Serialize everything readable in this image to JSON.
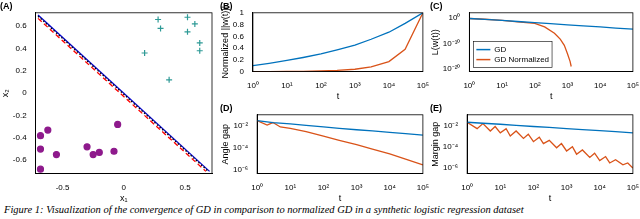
{
  "caption": "Figure 1: Visualization of the convergence of GD in comparison to normalized GD in a synthetic logistic regression dataset",
  "chart_data": [
    {
      "type": "scatter",
      "title": "(A)",
      "xlabel": "x₁",
      "ylabel": "x₂",
      "xlim": [
        -0.72,
        0.72
      ],
      "ylim": [
        -0.72,
        0.72
      ],
      "xticks": [
        -0.5,
        0,
        0.5
      ],
      "yticks": [
        -0.6,
        -0.4,
        -0.2,
        0,
        0.2,
        0.4,
        0.6
      ],
      "grid": false,
      "series": [
        {
          "type": "scatter",
          "marker": "plus",
          "color": "#2e9a96",
          "x": [
            0.28,
            0.52,
            0.58,
            0.3,
            0.52,
            0.62,
            0.62,
            0.17,
            0.37
          ],
          "values": [
            0.66,
            0.68,
            0.62,
            0.58,
            0.55,
            0.45,
            0.38,
            0.36,
            0.12
          ]
        },
        {
          "type": "scatter",
          "marker": "circle",
          "color": "#8e1a8c",
          "x": [
            -0.05,
            -0.62,
            -0.68,
            -0.68,
            -0.55,
            -0.3,
            -0.25,
            -0.2,
            -0.08,
            -0.68
          ],
          "values": [
            -0.28,
            -0.33,
            -0.38,
            -0.5,
            -0.55,
            -0.48,
            -0.55,
            -0.53,
            -0.52,
            -0.68
          ]
        },
        {
          "type": "line",
          "line_style": "dashed",
          "color": "#ff0000",
          "x": [
            -0.7,
            0.67
          ],
          "values": [
            0.67,
            -0.7
          ]
        },
        {
          "type": "line",
          "line_style": "dotted",
          "color": "#000000",
          "x": [
            -0.7,
            0.69
          ],
          "values": [
            0.69,
            -0.7
          ]
        },
        {
          "type": "line",
          "line_style": "solid",
          "color": "#0000cc",
          "x": [
            -0.7,
            0.7
          ],
          "values": [
            0.7,
            -0.7
          ]
        }
      ]
    },
    {
      "type": "line",
      "title": "(B)",
      "xlabel": "t",
      "ylabel": "Normalized ||w(t)||",
      "log": "x",
      "grid": false,
      "xlim": [
        1,
        100000
      ],
      "ylim": [
        0,
        1
      ],
      "xticks": [
        {
          "value": 1,
          "label": "10⁰"
        },
        {
          "value": 10,
          "label": "10¹"
        },
        {
          "value": 100,
          "label": "10²"
        },
        {
          "value": 1000,
          "label": "10³"
        },
        {
          "value": 10000,
          "label": "10⁴"
        },
        {
          "value": 100000,
          "label": "10⁵"
        }
      ],
      "yticks": [
        0,
        0.2,
        0.4,
        0.6,
        0.8,
        1
      ],
      "series": [
        {
          "color": "#0072bd",
          "x": [
            1,
            3,
            10,
            30,
            100,
            300,
            1000,
            3000,
            10000,
            30000,
            100000
          ],
          "values": [
            0.1,
            0.14,
            0.19,
            0.24,
            0.3,
            0.37,
            0.45,
            0.55,
            0.67,
            0.82,
            1.0
          ]
        },
        {
          "color": "#d95319",
          "x": [
            1,
            3,
            10,
            30,
            100,
            300,
            1000,
            3000,
            10000,
            30000,
            100000
          ],
          "values": [
            0,
            0,
            0.002,
            0.005,
            0.01,
            0.02,
            0.04,
            0.08,
            0.17,
            0.38,
            1.0
          ]
        }
      ]
    },
    {
      "type": "line",
      "title": "(C)",
      "xlabel": "t",
      "ylabel": "L(w(t))",
      "log": true,
      "grid": false,
      "legend": "lower left",
      "xlim": [
        1,
        100000
      ],
      "ylim": [
        1e-21,
        100
      ],
      "xticks": [
        {
          "value": 1,
          "label": "10⁰"
        },
        {
          "value": 10,
          "label": "10¹"
        },
        {
          "value": 100,
          "label": "10²"
        },
        {
          "value": 1000,
          "label": "10³"
        },
        {
          "value": 10000,
          "label": "10⁴"
        },
        {
          "value": 100000,
          "label": "10⁵"
        }
      ],
      "yticks": [
        {
          "value": 1e-20,
          "label": "10⁻²⁰"
        },
        {
          "value": 1e-10,
          "label": "10⁻¹⁰"
        },
        {
          "value": 1,
          "label": "10⁰"
        }
      ],
      "series": [
        {
          "name": "GD",
          "color": "#0072bd",
          "x": [
            1,
            3,
            10,
            30,
            100,
            300,
            1000,
            3000,
            10000,
            30000,
            100000
          ],
          "values": [
            0.6,
            0.25,
            0.1,
            0.04,
            0.015,
            0.006,
            0.002,
            0.0008,
            0.0003,
            0.0001,
            4e-05
          ]
        },
        {
          "name": "GD Normalized",
          "color": "#d95319",
          "x": [
            1,
            3,
            10,
            30,
            100,
            200,
            400,
            600,
            800,
            1000,
            1200,
            1300
          ],
          "values": [
            0.6,
            0.3,
            0.1,
            0.03,
            0.008,
            0.0003,
            1e-06,
            5e-09,
            2e-11,
            1e-14,
            1e-17,
            1e-19
          ]
        }
      ]
    },
    {
      "type": "line",
      "title": "(D)",
      "xlabel": "t",
      "ylabel": "Angle gap",
      "log": true,
      "grid": false,
      "xlim": [
        1,
        100000
      ],
      "ylim": [
        5e-07,
        0.1
      ],
      "xticks": [
        {
          "value": 1,
          "label": "10⁰"
        },
        {
          "value": 10,
          "label": "10¹"
        },
        {
          "value": 100,
          "label": "10²"
        },
        {
          "value": 1000,
          "label": "10³"
        },
        {
          "value": 10000,
          "label": "10⁴"
        },
        {
          "value": 100000,
          "label": "10⁵"
        }
      ],
      "yticks": [
        {
          "value": 1e-06,
          "label": "10⁻⁶"
        },
        {
          "value": 0.0001,
          "label": "10⁻⁴"
        },
        {
          "value": 0.01,
          "label": "10⁻²"
        }
      ],
      "series": [
        {
          "color": "#0072bd",
          "x": [
            1,
            3,
            10,
            30,
            100,
            300,
            1000,
            3000,
            10000,
            30000,
            100000
          ],
          "values": [
            0.03,
            0.02,
            0.015,
            0.011,
            0.008,
            0.006,
            0.0045,
            0.0035,
            0.0026,
            0.002,
            0.0015
          ]
        },
        {
          "color": "#d95319",
          "x": [
            1,
            2,
            3,
            5,
            10,
            30,
            100,
            300,
            1000,
            3000,
            10000,
            30000,
            100000
          ],
          "values": [
            0.03,
            0.012,
            0.02,
            0.008,
            0.006,
            0.003,
            0.0012,
            0.0005,
            0.0002,
            8e-05,
            3e-05,
            1e-05,
            3e-06
          ]
        }
      ]
    },
    {
      "type": "line",
      "title": "(E)",
      "xlabel": "t",
      "ylabel": "Margin gap",
      "log": true,
      "grid": false,
      "xlim": [
        1,
        100000
      ],
      "ylim": [
        3e-07,
        0.1
      ],
      "xticks": [
        {
          "value": 1,
          "label": "10⁰"
        },
        {
          "value": 10,
          "label": "10¹"
        },
        {
          "value": 100,
          "label": "10²"
        },
        {
          "value": 1000,
          "label": "10³"
        },
        {
          "value": 10000,
          "label": "10⁴"
        },
        {
          "value": 100000,
          "label": "10⁵"
        }
      ],
      "yticks": [
        {
          "value": 1e-06,
          "label": "10⁻⁶"
        },
        {
          "value": 0.0001,
          "label": "10⁻⁴"
        },
        {
          "value": 0.01,
          "label": "10⁻²"
        }
      ],
      "series": [
        {
          "color": "#0072bd",
          "x": [
            1,
            3,
            10,
            30,
            100,
            300,
            1000,
            3000,
            10000,
            30000,
            100000
          ],
          "values": [
            0.02,
            0.016,
            0.013,
            0.01,
            0.008,
            0.0065,
            0.005,
            0.004,
            0.0032,
            0.0026,
            0.002
          ]
        },
        {
          "color": "#d95319",
          "x": [
            1,
            2,
            3,
            5,
            7,
            10,
            15,
            20,
            30,
            50,
            70,
            100,
            150,
            200,
            300,
            500,
            700,
            1000,
            1500,
            2000,
            3000,
            5000,
            7000,
            10000,
            15000,
            20000,
            30000,
            50000,
            70000,
            100000
          ],
          "values": [
            0.02,
            0.005,
            0.015,
            0.003,
            0.008,
            0.002,
            0.005,
            0.001,
            0.003,
            0.0006,
            0.0015,
            0.0003,
            0.0008,
            0.0002,
            0.0004,
            8e-05,
            0.0002,
            4e-05,
            0.0001,
            2e-05,
            5e-05,
            1e-05,
            2.5e-05,
            5e-06,
            1.2e-05,
            3e-06,
            6e-06,
            2e-06,
            3e-06,
            1e-06
          ]
        }
      ]
    }
  ]
}
